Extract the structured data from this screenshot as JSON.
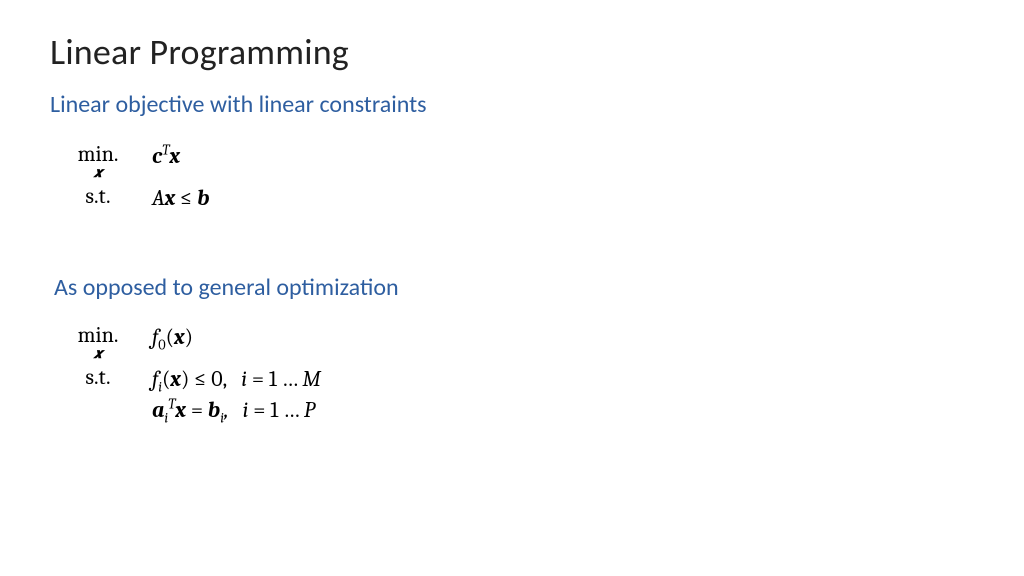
{
  "colors": {
    "background": "#ffffff",
    "title": "#222222",
    "subhead": "#2e5ea0",
    "math": "#000000"
  },
  "fonts": {
    "body_family": "Calibri",
    "math_family": "Cambria Math",
    "title_size_pt": 27,
    "subhead_size_pt": 18,
    "math_size_pt": 16.5
  },
  "title": "Linear Programming",
  "section1": {
    "heading": "Linear objective with linear constraints",
    "min_label": "min.",
    "min_sub": "𝒙",
    "st_label": "s.t.",
    "objective_html": "<span class='bi'>c</span><sup><span class='it'>T</span></sup><span class='bi'>x</span>",
    "constraint_html": "<span class='it'>A</span><span class='bi'>x</span> ≤ <span class='bi'>b</span>"
  },
  "section2": {
    "heading": "As opposed to general optimization",
    "min_label": "min.",
    "min_sub": "𝒙",
    "st_label": "s.t.",
    "objective_html": "<span class='it'>f</span><sub>0</sub>(<span class='bi'>x</span>)",
    "ineq_html": "<span class='it'>f</span><sub><span class='it'>i</span></sub>(<span class='bi'>x</span>) ≤ 0,<span class='sp'></span><span class='it'>i</span> = 1 … <span class='it'>M</span>",
    "eq_html": "<span class='bi'>a</span><sub><span class='it'>i</span></sub><sup><span class='it'>T</span></sup><span class='bi'>x</span> = <span class='bi'>b</span><sub><span class='it'>i</span></sub><span class='it'>,</span><span class='sp'></span><span class='it'>i</span> = 1 … <span class='it'>P</span>"
  }
}
